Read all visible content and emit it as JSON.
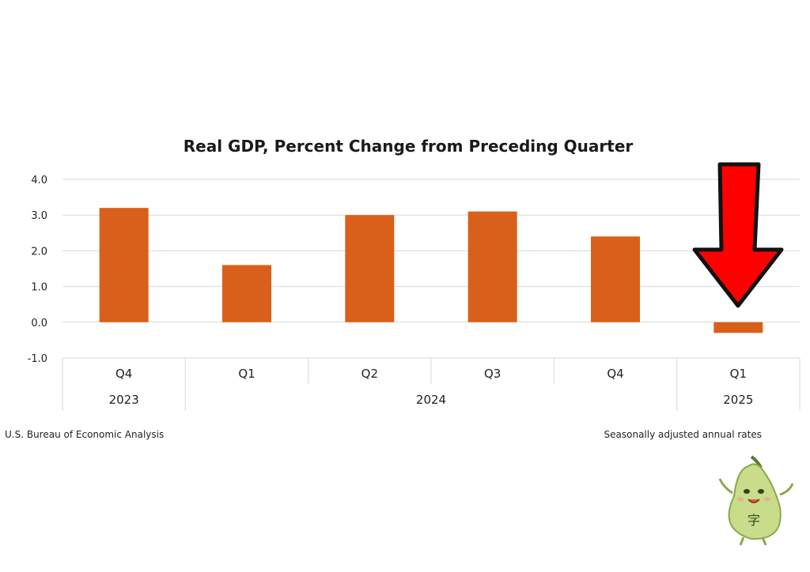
{
  "chart_data": {
    "type": "bar",
    "title": "Real GDP, Percent Change from Preceding Quarter",
    "categories": [
      "Q4",
      "Q1",
      "Q2",
      "Q3",
      "Q4",
      "Q1"
    ],
    "years": [
      {
        "label": "2023",
        "quarters": 1
      },
      {
        "label": "2024",
        "quarters": 4
      },
      {
        "label": "2025",
        "quarters": 1
      }
    ],
    "values": [
      3.2,
      1.6,
      3.0,
      3.1,
      2.4,
      -0.3
    ],
    "yticks": [
      "4.0",
      "3.0",
      "2.0",
      "1.0",
      "0.0",
      "-1.0"
    ],
    "ylim": [
      -1.0,
      4.0
    ],
    "grid": true,
    "bar_color": "#D9601A",
    "annotation": {
      "type": "arrow",
      "color": "#FF0000",
      "points_to": "Q1 2025"
    }
  },
  "footer": {
    "source": "U.S. Bureau of Economic Analysis",
    "note": "Seasonally adjusted annual rates"
  },
  "mascot": {
    "name": "pear-mascot",
    "glyph": "字"
  }
}
